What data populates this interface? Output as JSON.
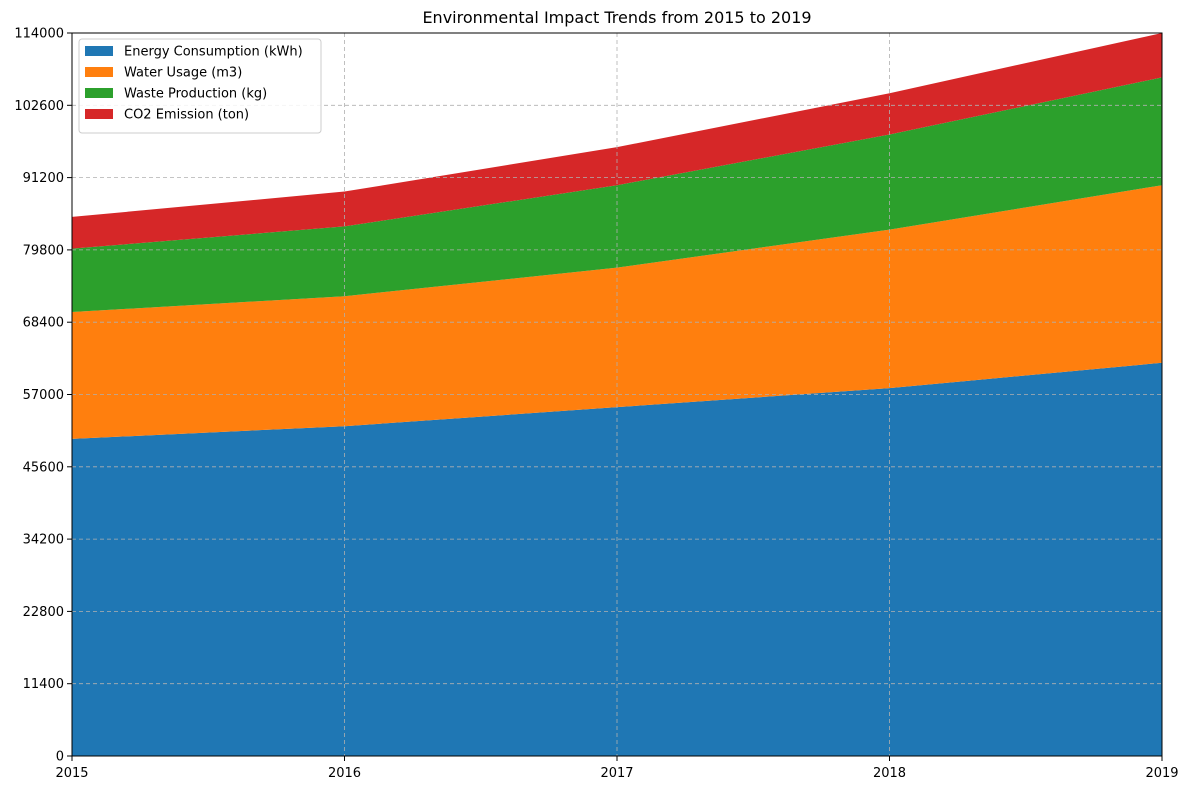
{
  "chart_data": {
    "type": "area",
    "stacked": true,
    "title": "Environmental Impact Trends from 2015 to 2019",
    "xlabel": "",
    "ylabel": "",
    "x": [
      2015,
      2016,
      2017,
      2018,
      2019
    ],
    "x_tick_labels": [
      "2015",
      "2016",
      "2017",
      "2018",
      "2019"
    ],
    "y_ticks": [
      0,
      11400,
      22800,
      34200,
      45600,
      57000,
      68400,
      79800,
      91200,
      102600,
      114000
    ],
    "y_tick_labels": [
      "0",
      "11400",
      "22800",
      "34200",
      "45600",
      "57000",
      "68400",
      "79800",
      "91200",
      "102600",
      "114000"
    ],
    "xlim": [
      2015,
      2019
    ],
    "ylim": [
      0,
      114000
    ],
    "grid": true,
    "legend_position": "upper-left",
    "series": [
      {
        "name": "Energy Consumption (kWh)",
        "color": "#1f77b4",
        "values": [
          50000,
          52000,
          55000,
          58000,
          62000
        ]
      },
      {
        "name": "Water Usage (m3)",
        "color": "#ff7f0e",
        "values": [
          20000,
          20500,
          22000,
          25000,
          28000
        ]
      },
      {
        "name": "Waste Production (kg)",
        "color": "#2ca02c",
        "values": [
          10000,
          11000,
          13000,
          15000,
          17000
        ]
      },
      {
        "name": "CO2 Emission (ton)",
        "color": "#d62728",
        "values": [
          5000,
          5500,
          6000,
          6500,
          7000
        ]
      }
    ]
  }
}
